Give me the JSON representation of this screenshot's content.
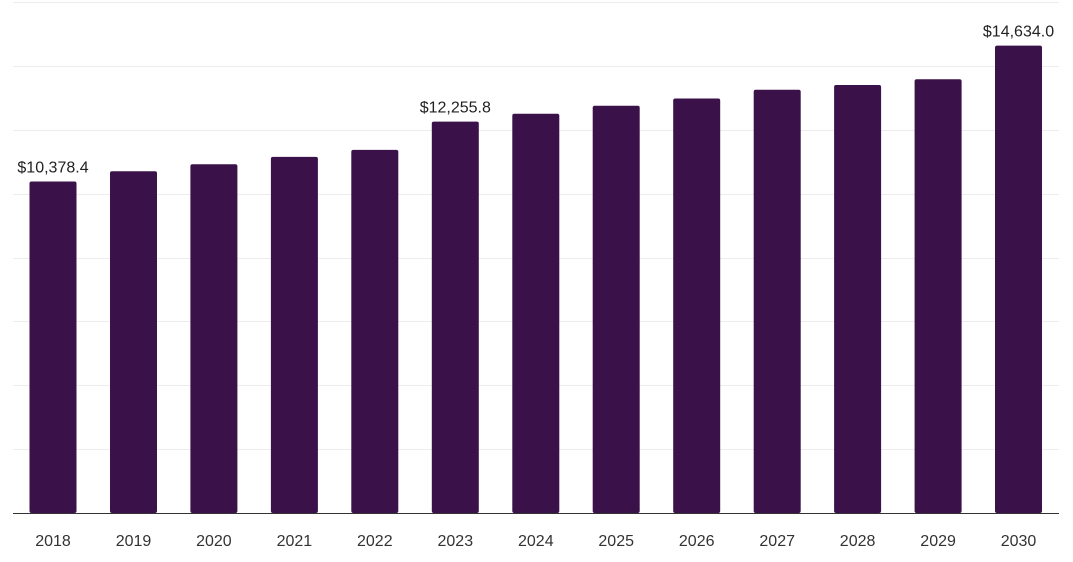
{
  "chart_data": {
    "type": "bar",
    "title": "",
    "xlabel": "",
    "ylabel": "",
    "categories": [
      "2018",
      "2019",
      "2020",
      "2021",
      "2022",
      "2023",
      "2024",
      "2025",
      "2026",
      "2027",
      "2028",
      "2029",
      "2030"
    ],
    "series": [
      {
        "values": [
          10378.4,
          10700,
          10920,
          11150,
          11370,
          12255.8,
          12500,
          12750,
          12980,
          13250,
          13400,
          13580,
          14634.0
        ]
      }
    ],
    "data_labels": [
      {
        "category": "2018",
        "text": "$10,378.4"
      },
      {
        "category": "2023",
        "text": "$12,255.8"
      },
      {
        "category": "2030",
        "text": "$14,634.0"
      }
    ],
    "ylim": [
      0,
      16000
    ],
    "grid": true,
    "y_tick_labels_visible": false,
    "colors": {
      "bar": "#3a1249",
      "grid": "#ececec",
      "axis": "#333333",
      "text": "#222222"
    }
  }
}
